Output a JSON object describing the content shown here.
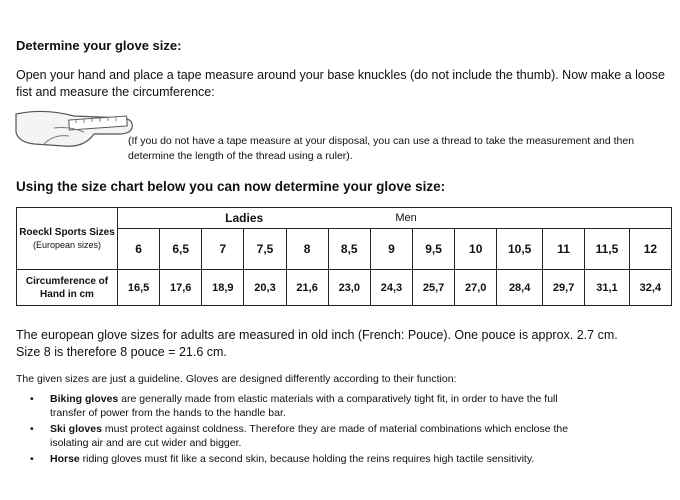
{
  "heading1": "Determine your glove size:",
  "intro": "Open your hand and place a tape measure around your base knuckles (do not include the thumb). Now make a loose fist and measure the circumference:",
  "note": "(If you do not have a tape measure at your disposal, you can use a thread to take the measurement and then determine the length of the thread using a ruler).",
  "heading2": "Using the size chart below you can now determine your glove size:",
  "table": {
    "row_label_sizes": "Roeckl Sports Sizes",
    "row_label_sizes_sub": "(European sizes)",
    "row_label_circ": "Circumference of Hand in cm",
    "group_ladies": "Ladies",
    "group_men": "Men",
    "sizes": [
      "6",
      "6,5",
      "7",
      "7,5",
      "8",
      "8,5",
      "9",
      "9,5",
      "10",
      "10,5",
      "11",
      "11,5",
      "12"
    ],
    "circumference": [
      "16,5",
      "17,6",
      "18,9",
      "20,3",
      "21,6",
      "23,0",
      "24,3",
      "25,7",
      "27,0",
      "28,4",
      "29,7",
      "31,1",
      "32,4"
    ]
  },
  "pouce_line1": "The european glove sizes for adults are measured in old inch (French: Pouce). One pouce is approx. 2.7 cm.",
  "pouce_line2": "Size 8 is therefore 8 pouce = 21.6 cm.",
  "guideline": "The given sizes are just a guideline. Gloves are designed differently according to their function:",
  "bullets": [
    {
      "bold": "Biking gloves",
      "text": " are generally made from elastic materials with a comparatively tight fit, in order to have the full transfer of power from the hands to the handle bar."
    },
    {
      "bold": "Ski gloves",
      "text": " must protect against coldness. Therefore they are made of material combinations which enclose the isolating air and are cut wider and bigger."
    },
    {
      "bold": "Horse",
      "text": " riding gloves must fit like a second skin, because holding the reins requires high tactile sensitivity."
    }
  ]
}
